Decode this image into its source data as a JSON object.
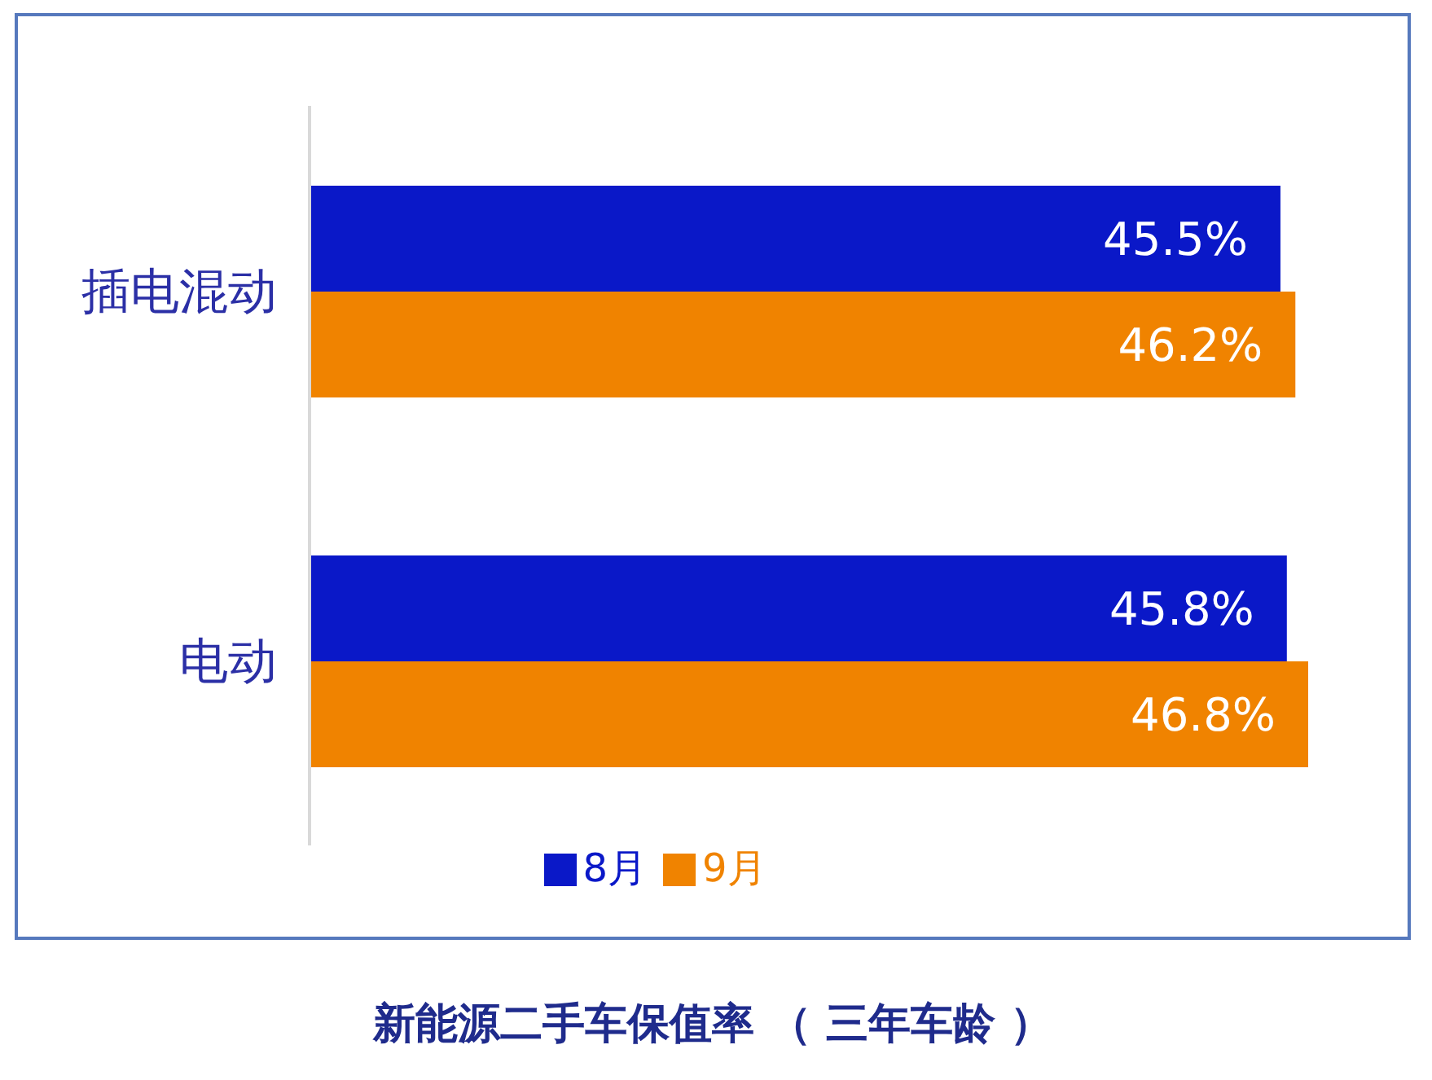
{
  "chart_data": {
    "type": "bar",
    "orientation": "horizontal",
    "title": "新能源二手车保值率 （ 三年车龄 ）",
    "categories": [
      "插电混动",
      "电动"
    ],
    "series": [
      {
        "name": "8月",
        "color": "#0a18c8",
        "values": [
          45.5,
          45.8
        ],
        "value_labels": [
          "45.5%",
          "45.8%"
        ]
      },
      {
        "name": "9月",
        "color": "#f08300",
        "values": [
          46.2,
          46.8
        ],
        "value_labels": [
          "46.2%",
          "46.8%"
        ]
      }
    ],
    "legend": "bottom",
    "tick_labels": "y"
  }
}
